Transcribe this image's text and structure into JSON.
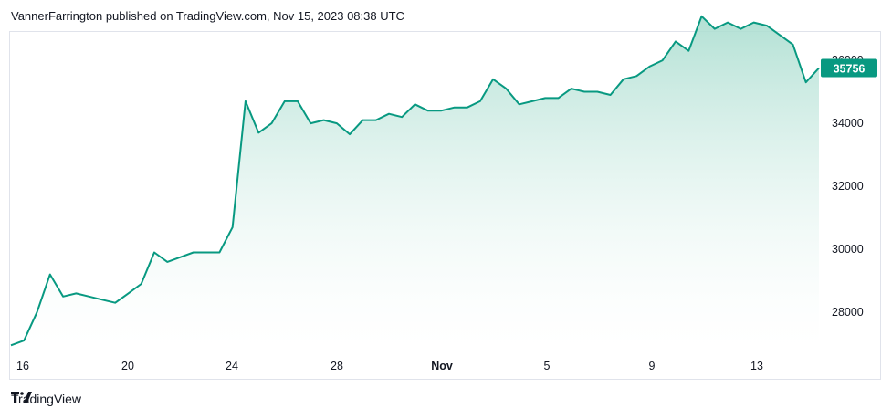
{
  "header": {
    "attribution": "VannerFarrington published on TradingView.com, Nov 15, 2023 08:38 UTC"
  },
  "footer": {
    "brand": "TradingView"
  },
  "colors": {
    "line": "#089981",
    "fill_top": "#a9ddcf",
    "fill_bottom": "#ffffff",
    "badge_bg": "#089981",
    "badge_text": "#ffffff"
  },
  "chart_data": {
    "type": "area",
    "title": "",
    "xlabel": "",
    "ylabel": "",
    "x_ticks": [
      "16",
      "20",
      "24",
      "28",
      "Nov",
      "5",
      "9",
      "13"
    ],
    "y_ticks": [
      28000,
      30000,
      32000,
      34000,
      36000
    ],
    "ylim": [
      26900,
      36900
    ],
    "last_value": 35756,
    "last_value_label": "35756",
    "series": [
      {
        "x": [
          "Oct 15",
          "Oct 15 12h",
          "Oct 16",
          "Oct 16 12h",
          "Oct 17",
          "Oct 17 12h",
          "Oct 18",
          "Oct 18 12h",
          "Oct 19",
          "Oct 19 12h",
          "Oct 20",
          "Oct 20 12h",
          "Oct 21",
          "Oct 21 12h",
          "Oct 22",
          "Oct 22 12h",
          "Oct 23",
          "Oct 23 12h",
          "Oct 24",
          "Oct 24 12h",
          "Oct 25",
          "Oct 25 12h",
          "Oct 26",
          "Oct 26 12h",
          "Oct 27",
          "Oct 27 12h",
          "Oct 28",
          "Oct 28 12h",
          "Oct 29",
          "Oct 29 12h",
          "Oct 30",
          "Oct 30 12h",
          "Oct 31",
          "Oct 31 12h",
          "Nov 1",
          "Nov 1 12h",
          "Nov 2",
          "Nov 2 12h",
          "Nov 3",
          "Nov 3 12h",
          "Nov 4",
          "Nov 4 12h",
          "Nov 5",
          "Nov 5 12h",
          "Nov 6",
          "Nov 6 12h",
          "Nov 7",
          "Nov 7 12h",
          "Nov 8",
          "Nov 8 12h",
          "Nov 9",
          "Nov 9 12h",
          "Nov 10",
          "Nov 10 12h",
          "Nov 11",
          "Nov 11 12h",
          "Nov 12",
          "Nov 12 12h",
          "Nov 13",
          "Nov 13 12h",
          "Nov 14",
          "Nov 14 12h",
          "Nov 15"
        ],
        "values": [
          26950,
          27100,
          28000,
          29200,
          28500,
          28600,
          28500,
          28400,
          28300,
          28600,
          28900,
          29900,
          29600,
          29750,
          29900,
          29900,
          29900,
          30700,
          34700,
          33700,
          34000,
          34700,
          34700,
          34000,
          34100,
          34000,
          33650,
          34100,
          34100,
          34300,
          34200,
          34600,
          34400,
          34400,
          34500,
          34500,
          34700,
          35400,
          35100,
          34600,
          34700,
          34800,
          34800,
          35100,
          35000,
          35000,
          34900,
          35400,
          35500,
          35800,
          36000,
          36600,
          36300,
          37400,
          37000,
          37200,
          37000,
          37200,
          37100,
          36800,
          36500,
          35300,
          35756
        ]
      }
    ]
  }
}
